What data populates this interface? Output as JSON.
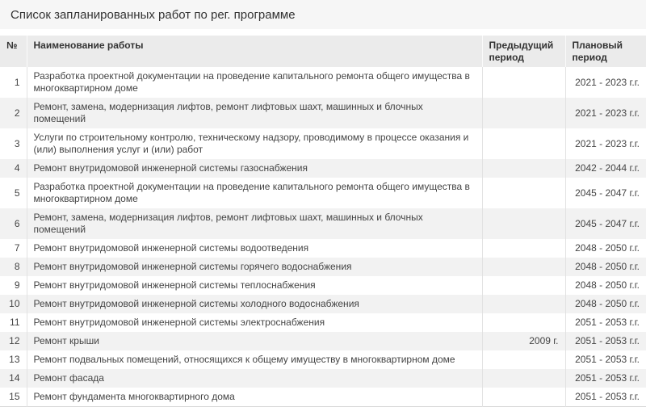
{
  "page": {
    "title": "Список запланированных работ по рег. программе"
  },
  "colors": {
    "title_bar_bg": "#f6f6f6",
    "table_header_bg": "#ebebeb",
    "row_stripe_bg": "#f2f2f2",
    "row_bg": "#ffffff",
    "border": "#e2e2e2",
    "text": "#444444"
  },
  "table": {
    "columns": [
      {
        "key": "num",
        "label": "№"
      },
      {
        "key": "name",
        "label": "Наименование работы"
      },
      {
        "key": "prev",
        "label": "Предыдущий период"
      },
      {
        "key": "plan",
        "label": "Плановый период"
      }
    ],
    "rows": [
      {
        "num": "1",
        "name": "Разработка проектной документации на проведение капитального ремонта общего имущества в многоквартирном доме",
        "prev": "",
        "plan": "2021 - 2023 г.г."
      },
      {
        "num": "2",
        "name": "Ремонт, замена, модернизация лифтов, ремонт лифтовых шахт, машинных и блочных помещений",
        "prev": "",
        "plan": "2021 - 2023 г.г."
      },
      {
        "num": "3",
        "name": "Услуги по строительному контролю, техническому надзору, проводимому в процессе оказания и (или) выполнения услуг и (или) работ",
        "prev": "",
        "plan": "2021 - 2023 г.г."
      },
      {
        "num": "4",
        "name": "Ремонт внутридомовой инженерной системы газоснабжения",
        "prev": "",
        "plan": "2042 - 2044 г.г."
      },
      {
        "num": "5",
        "name": "Разработка проектной документации на проведение капитального ремонта общего имущества в многоквартирном доме",
        "prev": "",
        "plan": "2045 - 2047 г.г."
      },
      {
        "num": "6",
        "name": "Ремонт, замена, модернизация лифтов, ремонт лифтовых шахт, машинных и блочных помещений",
        "prev": "",
        "plan": "2045 - 2047 г.г."
      },
      {
        "num": "7",
        "name": "Ремонт внутридомовой инженерной системы водоотведения",
        "prev": "",
        "plan": "2048 - 2050 г.г."
      },
      {
        "num": "8",
        "name": "Ремонт внутридомовой инженерной системы горячего водоснабжения",
        "prev": "",
        "plan": "2048 - 2050 г.г."
      },
      {
        "num": "9",
        "name": "Ремонт внутридомовой инженерной системы теплоснабжения",
        "prev": "",
        "plan": "2048 - 2050 г.г."
      },
      {
        "num": "10",
        "name": "Ремонт внутридомовой инженерной системы холодного водоснабжения",
        "prev": "",
        "plan": "2048 - 2050 г.г."
      },
      {
        "num": "11",
        "name": "Ремонт внутридомовой инженерной системы электроснабжения",
        "prev": "",
        "plan": "2051 - 2053 г.г."
      },
      {
        "num": "12",
        "name": "Ремонт крыши",
        "prev": "2009 г.",
        "plan": "2051 - 2053 г.г."
      },
      {
        "num": "13",
        "name": "Ремонт подвальных помещений, относящихся к общему имуществу в многоквартирном доме",
        "prev": "",
        "plan": "2051 - 2053 г.г."
      },
      {
        "num": "14",
        "name": "Ремонт фасада",
        "prev": "",
        "plan": "2051 - 2053 г.г."
      },
      {
        "num": "15",
        "name": "Ремонт фундамента многоквартирного дома",
        "prev": "",
        "plan": "2051 - 2053 г.г."
      }
    ]
  }
}
